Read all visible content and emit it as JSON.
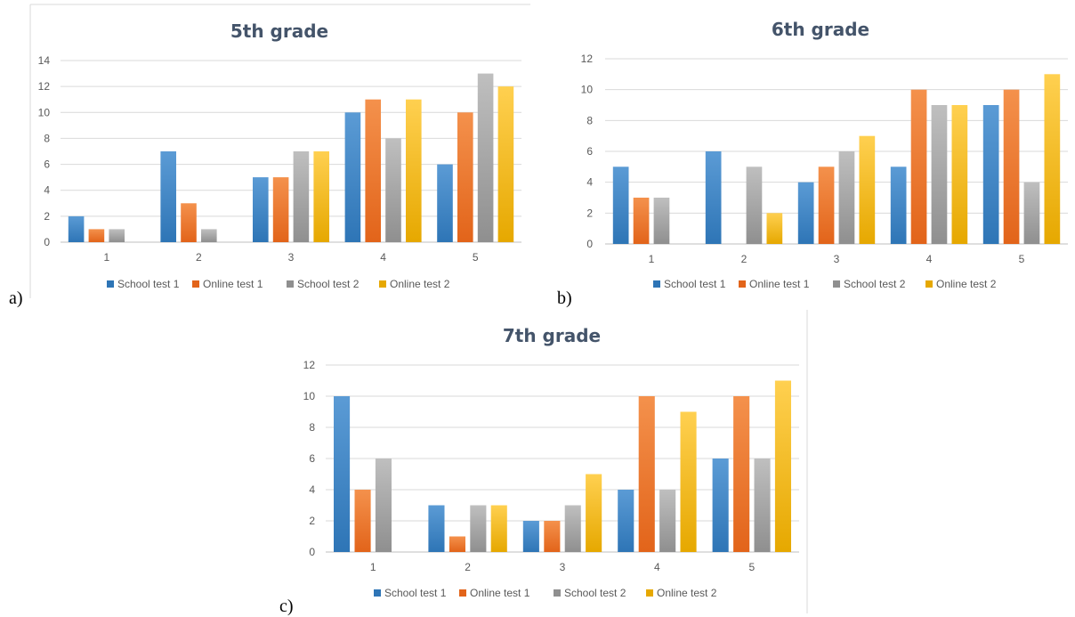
{
  "colors": {
    "School test 1": [
      "#5b9bd5",
      "#2e75b6"
    ],
    "Online test 1": [
      "#f4914c",
      "#e2641a"
    ],
    "School test 2": [
      "#bfbfbf",
      "#8f8f8f"
    ],
    "Online test 2": [
      "#ffd050",
      "#e6a800"
    ]
  },
  "panel_labels": [
    "a)",
    "b)",
    "c)"
  ],
  "chart_data": [
    {
      "type": "bar",
      "title": "5th grade",
      "categories": [
        "1",
        "2",
        "3",
        "4",
        "5"
      ],
      "ylim": [
        0,
        14
      ],
      "yticks": [
        0,
        2,
        4,
        6,
        8,
        10,
        12,
        14
      ],
      "grid": true,
      "legend": "bottom",
      "series": [
        {
          "name": "School test 1",
          "values": [
            2,
            7,
            5,
            10,
            6
          ]
        },
        {
          "name": "Online test 1",
          "values": [
            1,
            3,
            5,
            11,
            10
          ]
        },
        {
          "name": "School test 2",
          "values": [
            1,
            1,
            7,
            8,
            13
          ]
        },
        {
          "name": "Online test 2",
          "values": [
            0,
            0,
            7,
            11,
            12
          ]
        }
      ]
    },
    {
      "type": "bar",
      "title": "6th grade",
      "categories": [
        "1",
        "2",
        "3",
        "4",
        "5"
      ],
      "ylim": [
        0,
        12
      ],
      "yticks": [
        0,
        2,
        4,
        6,
        8,
        10,
        12
      ],
      "grid": true,
      "legend": "bottom",
      "series": [
        {
          "name": "School test 1",
          "values": [
            5,
            6,
            4,
            5,
            9
          ]
        },
        {
          "name": "Online test 1",
          "values": [
            3,
            0,
            5,
            10,
            10
          ]
        },
        {
          "name": "School test 2",
          "values": [
            3,
            5,
            6,
            9,
            4
          ]
        },
        {
          "name": "Online test 2",
          "values": [
            0,
            2,
            7,
            9,
            11
          ]
        }
      ]
    },
    {
      "type": "bar",
      "title": "7th grade",
      "categories": [
        "1",
        "2",
        "3",
        "4",
        "5"
      ],
      "ylim": [
        0,
        12
      ],
      "yticks": [
        0,
        2,
        4,
        6,
        8,
        10,
        12
      ],
      "grid": true,
      "legend": "bottom",
      "series": [
        {
          "name": "School test 1",
          "values": [
            10,
            3,
            2,
            4,
            6
          ]
        },
        {
          "name": "Online test 1",
          "values": [
            4,
            1,
            2,
            10,
            10
          ]
        },
        {
          "name": "School test 2",
          "values": [
            6,
            3,
            3,
            4,
            6
          ]
        },
        {
          "name": "Online test 2",
          "values": [
            0,
            3,
            5,
            9,
            11
          ]
        }
      ]
    }
  ]
}
